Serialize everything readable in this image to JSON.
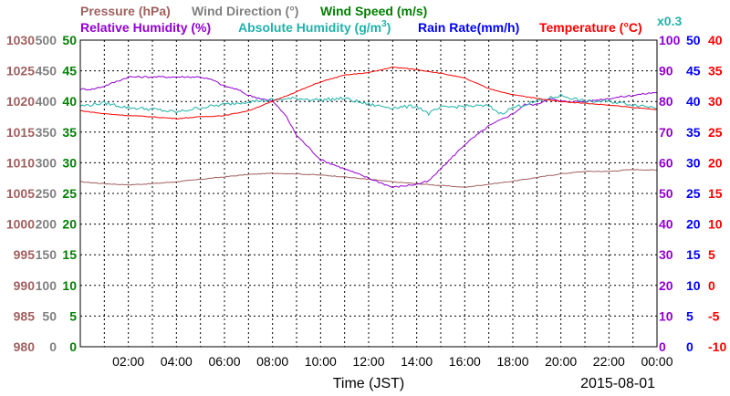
{
  "chart_data": {
    "type": "line",
    "date": "2015-08-01",
    "xlabel": "Time (JST)",
    "x_ticks": [
      "02:00",
      "04:00",
      "06:00",
      "08:00",
      "10:00",
      "12:00",
      "14:00",
      "16:00",
      "18:00",
      "20:00",
      "22:00",
      "00:00"
    ],
    "legend": {
      "pressure": {
        "label": "Pressure (hPa)",
        "color": "#a0605f"
      },
      "wind_direction": {
        "label": "Wind Direction (°)",
        "color": "#808080"
      },
      "wind_speed": {
        "label": "Wind Speed (m/s)",
        "color": "#008000"
      },
      "relative_humidity": {
        "label": "Relative Humidity (%)",
        "color": "#9400d3"
      },
      "absolute_humidity": {
        "label": "Absolute Humidity (g/m",
        "sup": "3",
        "close": ")",
        "color": "#20b2aa"
      },
      "rain_rate": {
        "label": "Rain Rate(mm/h)",
        "color": "#0000ff"
      },
      "temperature": {
        "label": "Temperature (°C)",
        "color": "#ff0000"
      },
      "abs_scale_note": {
        "label": "x0.3",
        "color": "#20b2aa"
      }
    },
    "axes": {
      "pressure": {
        "ticks": [
          "980",
          "985",
          "990",
          "995",
          "1000",
          "1005",
          "1010",
          "1015",
          "1020",
          "1025",
          "1030"
        ],
        "range": [
          980,
          1030
        ],
        "color": "#a0605f"
      },
      "wind_direction": {
        "ticks": [
          "0",
          "50",
          "100",
          "150",
          "200",
          "250",
          "300",
          "350",
          "400",
          "450",
          "500"
        ],
        "range": [
          0,
          500
        ],
        "color": "#808080"
      },
      "wind_speed": {
        "ticks": [
          "0",
          "5",
          "10",
          "15",
          "20",
          "25",
          "30",
          "35",
          "40",
          "45",
          "50"
        ],
        "range": [
          0,
          50
        ],
        "color": "#008000"
      },
      "relative_humidity": {
        "ticks": [
          "0",
          "10",
          "20",
          "30",
          "40",
          "50",
          "60",
          "70",
          "80",
          "90",
          "100"
        ],
        "range": [
          0,
          100
        ],
        "color": "#9400d3"
      },
      "rain_rate": {
        "ticks": [
          "0",
          "5",
          "10",
          "15",
          "20",
          "25",
          "30",
          "35",
          "40",
          "45",
          "50"
        ],
        "range": [
          0,
          50
        ],
        "color": "#0000ff"
      },
      "temperature": {
        "ticks": [
          "-10",
          "-5",
          "0",
          "5",
          "10",
          "15",
          "20",
          "25",
          "30",
          "35",
          "40"
        ],
        "range": [
          -10,
          40
        ],
        "color": "#ff0000"
      }
    },
    "series": [
      {
        "name": "Pressure (hPa)",
        "color": "#a0605f",
        "axis": "pressure",
        "x_hours": [
          0,
          1,
          2,
          3,
          4,
          5,
          6,
          7,
          8,
          9,
          10,
          11,
          12,
          13,
          14,
          15,
          16,
          17,
          18,
          19,
          20,
          21,
          22,
          23,
          24
        ],
        "values": [
          1006.9,
          1006.6,
          1006.4,
          1006.6,
          1006.9,
          1007.3,
          1007.7,
          1008.1,
          1008.3,
          1008.2,
          1008.0,
          1007.7,
          1007.3,
          1006.9,
          1006.6,
          1006.3,
          1006.0,
          1006.5,
          1007.0,
          1007.6,
          1008.2,
          1008.6,
          1008.6,
          1008.9,
          1008.8
        ]
      },
      {
        "name": "Relative Humidity (%)",
        "color": "#9400d3",
        "axis": "relative_humidity",
        "x_hours": [
          0,
          0.5,
          1,
          2,
          2.5,
          3,
          4,
          5,
          5.5,
          6,
          6.5,
          7,
          7.5,
          8,
          8.5,
          9,
          10,
          11,
          12,
          13,
          14,
          14.5,
          15,
          16,
          16.5,
          17,
          18,
          18.5,
          19,
          19.5,
          20,
          21,
          22,
          23,
          24
        ],
        "values": [
          84,
          84,
          85,
          88,
          88,
          88,
          88,
          88,
          87,
          85,
          84,
          82,
          81,
          80,
          76,
          69,
          61,
          58,
          55,
          52,
          53,
          54,
          58,
          66,
          69,
          72,
          76,
          79,
          79,
          81,
          80,
          80,
          81,
          82,
          83
        ]
      },
      {
        "name": "Absolute Humidity (g/m3)",
        "color": "#20b2aa",
        "axis": "relative_humidity",
        "x_hours": [
          0,
          1,
          2,
          3,
          4,
          5,
          6,
          7,
          8,
          9,
          10,
          11,
          12,
          13,
          14,
          14.5,
          15,
          16,
          17,
          17.5,
          18,
          19,
          20,
          21,
          22,
          23,
          24
        ],
        "values": [
          78.5,
          79.5,
          78.0,
          77.5,
          76.5,
          78.0,
          79.0,
          80.0,
          80.5,
          81.0,
          80.5,
          81.0,
          79.0,
          78.0,
          78.5,
          76.0,
          78.0,
          78.5,
          78.5,
          76.0,
          78.0,
          80.0,
          82.0,
          80.0,
          80.0,
          79.0,
          78.0
        ]
      },
      {
        "name": "Temperature (°C)",
        "color": "#ff0000",
        "axis": "temperature",
        "x_hours": [
          0,
          1,
          2,
          3,
          4,
          5,
          6,
          7,
          8,
          9,
          10,
          11,
          12,
          13,
          14,
          15,
          16,
          17,
          18,
          19,
          20,
          21,
          22,
          23,
          24
        ],
        "values": [
          28.5,
          28.0,
          27.7,
          27.5,
          27.2,
          27.5,
          27.7,
          28.5,
          30.0,
          31.6,
          33.2,
          34.3,
          34.7,
          35.6,
          35.2,
          34.6,
          33.8,
          32.1,
          31.1,
          30.5,
          30.0,
          29.7,
          29.4,
          29.0,
          28.7
        ]
      },
      {
        "name": "Rain Rate(mm/h)",
        "color": "#0000ff",
        "axis": "rain_rate",
        "x_hours": [
          0,
          24
        ],
        "values": [
          0,
          0
        ]
      }
    ],
    "grid": true
  }
}
